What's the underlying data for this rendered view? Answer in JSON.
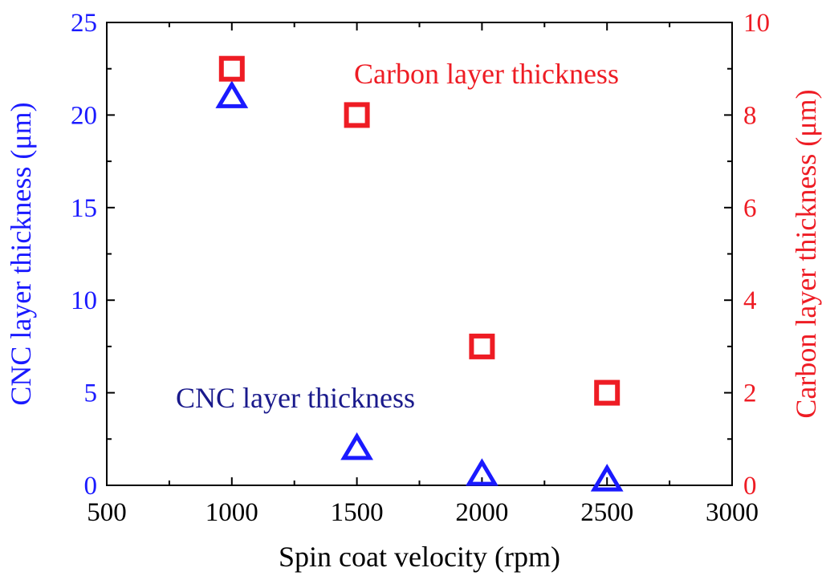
{
  "chart_data": {
    "type": "scatter",
    "xlabel": "Spin coat velocity (rpm)",
    "xlim": [
      500,
      3000
    ],
    "x_ticks": [
      "500",
      "1000",
      "1500",
      "2000",
      "2500",
      "3000"
    ],
    "y_left": {
      "label": "CNC layer thickness (μm)",
      "lim": [
        0,
        25
      ],
      "ticks": [
        "0",
        "5",
        "10",
        "15",
        "20",
        "25"
      ],
      "color": "#1a1aff"
    },
    "y_right": {
      "label": "Carbon layer thickness (μm)",
      "lim": [
        0,
        10
      ],
      "ticks": [
        "0",
        "2",
        "4",
        "6",
        "8",
        "10"
      ],
      "color": "#ee1c24"
    },
    "series": [
      {
        "name": "CNC layer thickness",
        "axis": "left",
        "marker": "triangle",
        "color": "#1a1aff",
        "x": [
          1000,
          1500,
          2000,
          2500
        ],
        "y": [
          21.0,
          2.0,
          0.6,
          0.3
        ]
      },
      {
        "name": "Carbon layer thickness",
        "axis": "right",
        "marker": "square",
        "color": "#ee1c24",
        "x": [
          1000,
          1500,
          2000,
          2500
        ],
        "y": [
          9.0,
          8.0,
          3.0,
          2.0
        ]
      }
    ],
    "annotations": [
      {
        "text": "Carbon layer thickness",
        "color": "#ee1c24",
        "series": "Carbon layer thickness"
      },
      {
        "text": "CNC layer thickness",
        "color": "#1a1a8c",
        "series": "CNC layer thickness"
      }
    ],
    "grid": false,
    "legend": "none"
  }
}
